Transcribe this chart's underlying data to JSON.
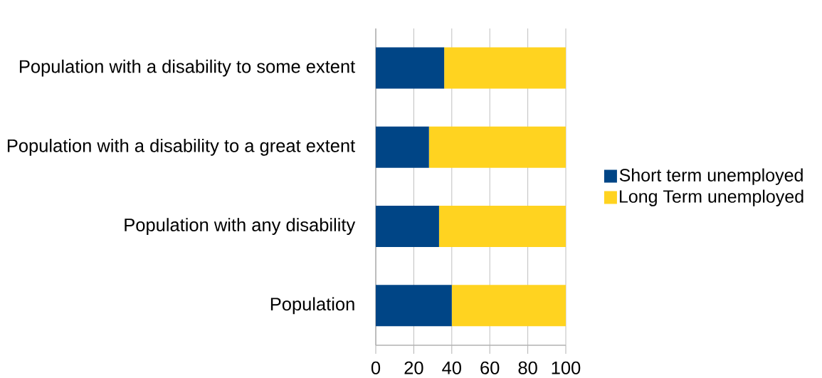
{
  "chart_data": {
    "type": "bar",
    "orientation": "horizontal",
    "stacked": true,
    "categories": [
      "Population with a disability to some extent",
      "Population with a disability to a great extent",
      "Population with any disability",
      "Population"
    ],
    "series": [
      {
        "name": "Short term unemployed",
        "color": "#004586",
        "values": [
          36,
          28,
          33.3,
          40
        ]
      },
      {
        "name": "Long Term unemployed",
        "color": "#ffd320",
        "values": [
          64,
          72,
          66.7,
          60
        ]
      }
    ],
    "xlim": [
      0,
      100
    ],
    "xticks": [
      0,
      20,
      40,
      60,
      80,
      100
    ],
    "grid": "x",
    "legend": "right"
  }
}
